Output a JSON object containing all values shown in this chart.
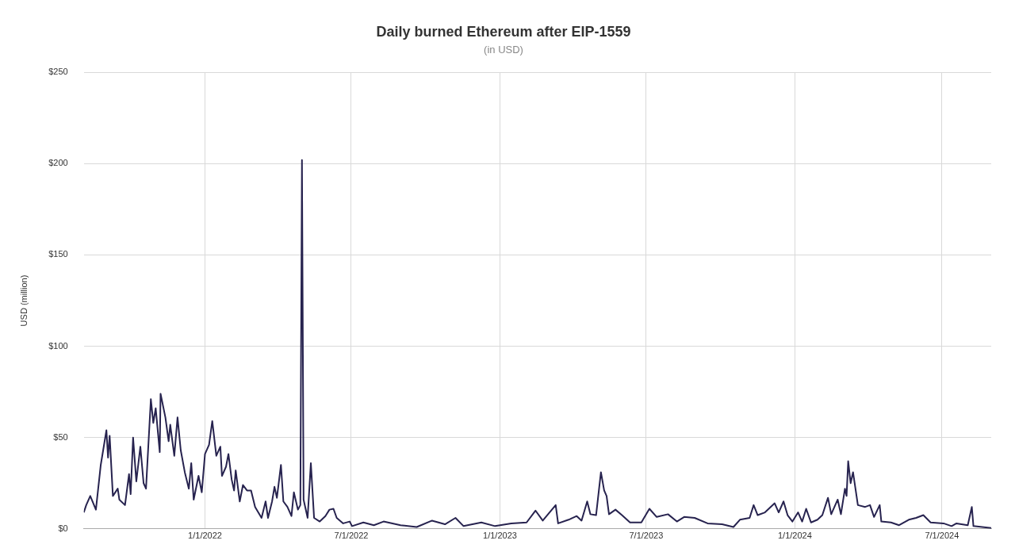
{
  "chart_data": {
    "type": "line",
    "title": "Daily burned Ethereum after EIP-1559",
    "subtitle": "(in USD)",
    "ylabel": "USD (million)",
    "x": [
      "2021-08-04",
      "2021-08-07",
      "2021-08-12",
      "2021-08-19",
      "2021-08-25",
      "2021-09-01",
      "2021-09-03",
      "2021-09-05",
      "2021-09-09",
      "2021-09-15",
      "2021-09-17",
      "2021-09-24",
      "2021-09-29",
      "2021-10-01",
      "2021-10-04",
      "2021-10-08",
      "2021-10-13",
      "2021-10-17",
      "2021-10-20",
      "2021-10-26",
      "2021-10-29",
      "2021-11-01",
      "2021-11-06",
      "2021-11-07",
      "2021-11-13",
      "2021-11-17",
      "2021-11-19",
      "2021-11-24",
      "2021-11-28",
      "2021-12-02",
      "2021-12-07",
      "2021-12-12",
      "2021-12-15",
      "2021-12-18",
      "2021-12-24",
      "2021-12-28",
      "2022-01-01",
      "2022-01-06",
      "2022-01-10",
      "2022-01-15",
      "2022-01-20",
      "2022-01-22",
      "2022-01-27",
      "2022-01-30",
      "2022-02-03",
      "2022-02-06",
      "2022-02-08",
      "2022-02-13",
      "2022-02-17",
      "2022-02-22",
      "2022-02-27",
      "2022-03-04",
      "2022-03-12",
      "2022-03-17",
      "2022-03-20",
      "2022-03-25",
      "2022-03-28",
      "2022-03-31",
      "2022-04-05",
      "2022-04-08",
      "2022-04-13",
      "2022-04-18",
      "2022-04-21",
      "2022-04-26",
      "2022-04-29",
      "2022-05-01",
      "2022-05-03",
      "2022-05-08",
      "2022-05-12",
      "2022-05-16",
      "2022-05-23",
      "2022-05-30",
      "2022-06-04",
      "2022-06-09",
      "2022-06-13",
      "2022-06-21",
      "2022-06-29",
      "2022-07-02",
      "2022-07-16",
      "2022-07-29",
      "2022-08-10",
      "2022-08-31",
      "2022-09-20",
      "2022-10-09",
      "2022-10-25",
      "2022-11-07",
      "2022-11-17",
      "2022-12-09",
      "2022-12-26",
      "2023-01-15",
      "2023-02-03",
      "2023-02-14",
      "2023-02-23",
      "2023-03-11",
      "2023-03-14",
      "2023-03-27",
      "2023-04-06",
      "2023-04-12",
      "2023-04-19",
      "2023-04-23",
      "2023-04-30",
      "2023-05-06",
      "2023-05-10",
      "2023-05-13",
      "2023-05-16",
      "2023-05-24",
      "2023-06-01",
      "2023-06-11",
      "2023-06-25",
      "2023-07-05",
      "2023-07-14",
      "2023-07-28",
      "2023-08-08",
      "2023-08-17",
      "2023-08-30",
      "2023-09-15",
      "2023-10-03",
      "2023-10-17",
      "2023-10-25",
      "2023-11-06",
      "2023-11-11",
      "2023-11-16",
      "2023-11-25",
      "2023-12-07",
      "2023-12-12",
      "2023-12-18",
      "2023-12-23",
      "2023-12-29",
      "2024-01-05",
      "2024-01-10",
      "2024-01-15",
      "2024-01-21",
      "2024-01-29",
      "2024-02-04",
      "2024-02-11",
      "2024-02-15",
      "2024-02-23",
      "2024-02-27",
      "2024-03-03",
      "2024-03-05",
      "2024-03-07",
      "2024-03-10",
      "2024-03-13",
      "2024-03-16",
      "2024-03-19",
      "2024-03-28",
      "2024-04-03",
      "2024-04-08",
      "2024-04-15",
      "2024-04-17",
      "2024-04-29",
      "2024-05-09",
      "2024-05-21",
      "2024-05-30",
      "2024-06-08",
      "2024-06-17",
      "2024-07-03",
      "2024-07-13",
      "2024-07-19",
      "2024-08-02",
      "2024-08-07",
      "2024-08-09",
      "2024-08-31"
    ],
    "series": [
      {
        "color": "#27234f",
        "values": [
          9,
          13,
          18,
          10.5,
          35,
          54,
          39,
          51,
          18,
          22,
          16,
          13,
          30,
          19,
          50,
          26,
          45,
          25,
          22,
          71,
          58,
          66,
          42,
          74,
          61,
          48,
          57,
          40,
          61,
          43,
          31,
          22,
          36,
          16,
          29,
          20,
          41,
          46,
          59,
          40,
          45,
          29,
          34,
          41,
          27,
          21,
          32,
          15,
          24,
          21,
          21,
          12,
          6,
          15,
          6,
          15,
          23,
          17,
          35,
          15,
          12,
          7,
          20,
          10.5,
          13,
          202,
          16,
          6,
          36,
          6,
          4,
          7,
          10.5,
          11,
          6,
          3,
          4,
          1.5,
          3.5,
          2,
          4,
          2,
          1,
          4.5,
          2.5,
          6,
          1.5,
          3.5,
          1.5,
          3,
          3.5,
          10,
          4.5,
          13,
          3,
          5,
          7,
          4.5,
          15,
          8,
          7.5,
          31,
          21,
          18,
          8,
          10.5,
          7.5,
          3.5,
          3.5,
          11,
          6.5,
          8,
          4,
          6.5,
          6,
          3,
          2.5,
          1,
          5,
          6,
          13,
          7.5,
          9,
          14,
          9,
          15,
          7.5,
          4,
          9,
          4,
          11,
          3.5,
          5,
          7.5,
          17,
          8,
          16,
          8,
          22,
          18,
          37,
          25,
          31,
          22,
          13,
          12,
          13,
          6.5,
          13,
          4,
          3.5,
          2,
          5,
          6,
          7.5,
          3.5,
          3,
          1.5,
          3,
          2,
          12,
          1.5,
          0.5
        ]
      }
    ],
    "xlim": [
      "2021-08-04",
      "2024-08-31"
    ],
    "xticks": [
      {
        "value": "2022-01-01",
        "label": "1/1/2022"
      },
      {
        "value": "2022-07-01",
        "label": "7/1/2022"
      },
      {
        "value": "2023-01-01",
        "label": "1/1/2023"
      },
      {
        "value": "2023-07-01",
        "label": "7/1/2023"
      },
      {
        "value": "2024-01-01",
        "label": "1/1/2024"
      },
      {
        "value": "2024-07-01",
        "label": "7/1/2024"
      }
    ],
    "ylim": [
      0,
      250
    ],
    "yticks": [
      {
        "value": 0,
        "label": "$0"
      },
      {
        "value": 50,
        "label": "$50"
      },
      {
        "value": 100,
        "label": "$100"
      },
      {
        "value": 150,
        "label": "$150"
      },
      {
        "value": 200,
        "label": "$200"
      },
      {
        "value": 250,
        "label": "$250"
      }
    ],
    "grid": true,
    "legend": false,
    "marker": "none",
    "line_style": "solid"
  }
}
